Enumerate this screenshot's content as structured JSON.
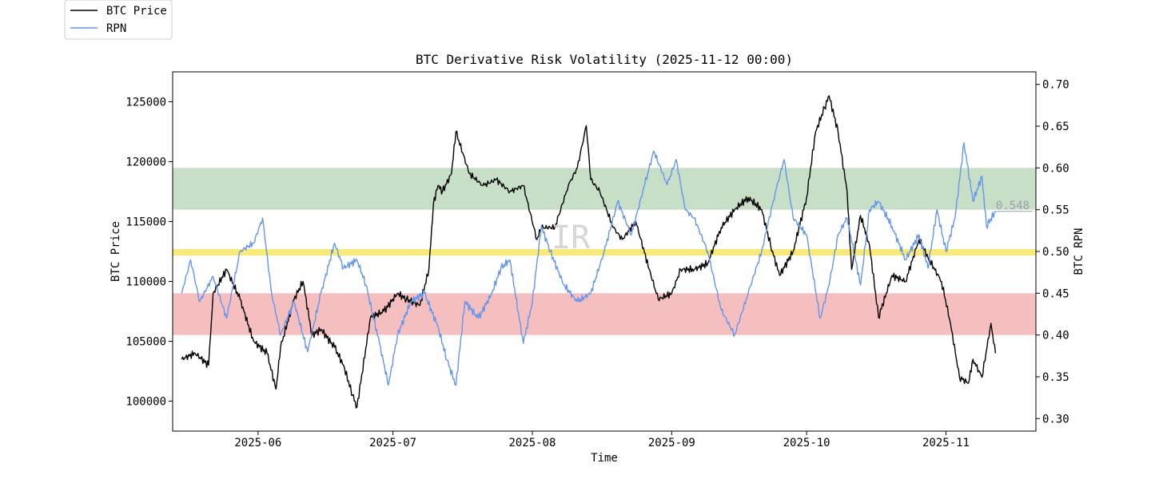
{
  "chart_data": {
    "type": "line",
    "title": "BTC Derivative Risk Volatility (2025-11-12 00:00)",
    "xlabel": "Time",
    "ylabel_left": "BTC Price",
    "ylabel_right": "BTC RPN",
    "watermark": "IR",
    "legend": {
      "placement": "upper-left outside",
      "entries": [
        "BTC Price",
        "RPN"
      ]
    },
    "x_ticks": [
      "2025-06",
      "2025-07",
      "2025-08",
      "2025-09",
      "2025-10",
      "2025-11"
    ],
    "x_range": [
      "2025-05-13",
      "2025-11-21"
    ],
    "ylim_left": [
      97500,
      127500
    ],
    "ylim_right": [
      0.285,
      0.715
    ],
    "y_ticks_left": [
      100000,
      105000,
      110000,
      115000,
      120000,
      125000
    ],
    "y_ticks_right": [
      0.3,
      0.35,
      0.4,
      0.45,
      0.5,
      0.55,
      0.6,
      0.65,
      0.7
    ],
    "bands": [
      {
        "name": "high",
        "from": 0.55,
        "to": 0.6,
        "color": "#c6dfc6"
      },
      {
        "name": "mid",
        "from": 0.495,
        "to": 0.503,
        "color": "#f7e97a"
      },
      {
        "name": "low",
        "from": 0.4,
        "to": 0.45,
        "color": "#f6bfbf"
      }
    ],
    "reference_line": {
      "value": 0.548,
      "label": "0.548"
    },
    "series": [
      {
        "name": "BTC Price",
        "axis": "left",
        "color": "#000000",
        "x": [
          "2025-05-15",
          "2025-05-18",
          "2025-05-21",
          "2025-05-22",
          "2025-05-25",
          "2025-05-28",
          "2025-05-31",
          "2025-06-03",
          "2025-06-05",
          "2025-06-06",
          "2025-06-09",
          "2025-06-11",
          "2025-06-13",
          "2025-06-15",
          "2025-06-18",
          "2025-06-20",
          "2025-06-22",
          "2025-06-23",
          "2025-06-26",
          "2025-06-29",
          "2025-07-02",
          "2025-07-04",
          "2025-07-07",
          "2025-07-09",
          "2025-07-10",
          "2025-07-11",
          "2025-07-12",
          "2025-07-14",
          "2025-07-15",
          "2025-07-18",
          "2025-07-21",
          "2025-07-24",
          "2025-07-27",
          "2025-07-30",
          "2025-08-02",
          "2025-08-03",
          "2025-08-06",
          "2025-08-09",
          "2025-08-11",
          "2025-08-13",
          "2025-08-14",
          "2025-08-16",
          "2025-08-19",
          "2025-08-21",
          "2025-08-24",
          "2025-08-27",
          "2025-08-29",
          "2025-09-01",
          "2025-09-03",
          "2025-09-06",
          "2025-09-09",
          "2025-09-12",
          "2025-09-15",
          "2025-09-18",
          "2025-09-21",
          "2025-09-23",
          "2025-09-25",
          "2025-09-28",
          "2025-10-01",
          "2025-10-03",
          "2025-10-05",
          "2025-10-06",
          "2025-10-08",
          "2025-10-10",
          "2025-10-11",
          "2025-10-13",
          "2025-10-15",
          "2025-10-17",
          "2025-10-20",
          "2025-10-23",
          "2025-10-26",
          "2025-10-28",
          "2025-10-31",
          "2025-11-02",
          "2025-11-04",
          "2025-11-06",
          "2025-11-07",
          "2025-11-09",
          "2025-11-11",
          "2025-11-12"
        ],
        "values": [
          103500,
          104000,
          103000,
          109000,
          111000,
          108500,
          105000,
          104000,
          101000,
          104500,
          108500,
          110000,
          105500,
          106000,
          104500,
          103000,
          100500,
          99500,
          107000,
          107500,
          109000,
          108500,
          108000,
          111000,
          116500,
          118000,
          117500,
          119000,
          122500,
          119000,
          118000,
          118500,
          117500,
          118000,
          113500,
          114500,
          114500,
          118000,
          119500,
          123000,
          118500,
          117500,
          114500,
          113500,
          115000,
          111000,
          108500,
          109000,
          111000,
          111000,
          111500,
          114500,
          116000,
          117000,
          116000,
          113000,
          110500,
          112500,
          117000,
          122500,
          124500,
          125500,
          122500,
          117500,
          111000,
          115500,
          113000,
          107000,
          110500,
          110000,
          113500,
          112000,
          110000,
          106500,
          102000,
          101500,
          103500,
          102000,
          106500,
          104000
        ]
      },
      {
        "name": "RPN",
        "axis": "right",
        "color": "#6495ed",
        "x": [
          "2025-05-15",
          "2025-05-17",
          "2025-05-19",
          "2025-05-22",
          "2025-05-25",
          "2025-05-28",
          "2025-05-31",
          "2025-06-02",
          "2025-06-04",
          "2025-06-06",
          "2025-06-09",
          "2025-06-12",
          "2025-06-15",
          "2025-06-18",
          "2025-06-20",
          "2025-06-23",
          "2025-06-25",
          "2025-06-28",
          "2025-06-30",
          "2025-07-02",
          "2025-07-05",
          "2025-07-08",
          "2025-07-11",
          "2025-07-13",
          "2025-07-15",
          "2025-07-17",
          "2025-07-20",
          "2025-07-23",
          "2025-07-25",
          "2025-07-27",
          "2025-07-30",
          "2025-08-01",
          "2025-08-03",
          "2025-08-05",
          "2025-08-08",
          "2025-08-11",
          "2025-08-14",
          "2025-08-17",
          "2025-08-20",
          "2025-08-23",
          "2025-08-26",
          "2025-08-28",
          "2025-08-31",
          "2025-09-02",
          "2025-09-04",
          "2025-09-06",
          "2025-09-09",
          "2025-09-12",
          "2025-09-15",
          "2025-09-18",
          "2025-09-21",
          "2025-09-24",
          "2025-09-26",
          "2025-09-28",
          "2025-10-01",
          "2025-10-04",
          "2025-10-06",
          "2025-10-08",
          "2025-10-10",
          "2025-10-13",
          "2025-10-15",
          "2025-10-17",
          "2025-10-20",
          "2025-10-23",
          "2025-10-26",
          "2025-10-28",
          "2025-10-30",
          "2025-11-01",
          "2025-11-03",
          "2025-11-05",
          "2025-11-07",
          "2025-11-09",
          "2025-11-10",
          "2025-11-12"
        ],
        "values": [
          0.45,
          0.49,
          0.44,
          0.47,
          0.42,
          0.5,
          0.51,
          0.54,
          0.45,
          0.4,
          0.44,
          0.38,
          0.45,
          0.51,
          0.48,
          0.49,
          0.46,
          0.39,
          0.34,
          0.4,
          0.44,
          0.45,
          0.41,
          0.37,
          0.34,
          0.44,
          0.42,
          0.45,
          0.48,
          0.49,
          0.39,
          0.44,
          0.53,
          0.5,
          0.46,
          0.44,
          0.45,
          0.5,
          0.56,
          0.52,
          0.58,
          0.62,
          0.58,
          0.61,
          0.55,
          0.54,
          0.5,
          0.43,
          0.4,
          0.45,
          0.5,
          0.57,
          0.61,
          0.54,
          0.52,
          0.42,
          0.46,
          0.52,
          0.54,
          0.46,
          0.55,
          0.56,
          0.53,
          0.49,
          0.52,
          0.48,
          0.55,
          0.5,
          0.54,
          0.63,
          0.56,
          0.59,
          0.53,
          0.548
        ]
      }
    ]
  }
}
